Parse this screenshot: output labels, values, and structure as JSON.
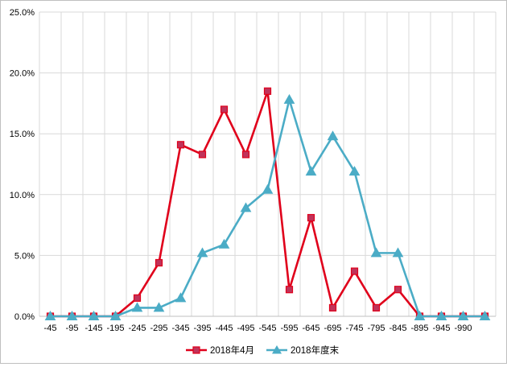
{
  "chart_data": {
    "type": "line",
    "categories": [
      "-45",
      "-95",
      "-145",
      "-195",
      "-245",
      "-295",
      "-345",
      "-395",
      "-445",
      "-495",
      "-545",
      "-595",
      "-645",
      "-695",
      "-745",
      "-795",
      "-845",
      "-895",
      "-945",
      "-990",
      ""
    ],
    "y_ticks": [
      "0.0%",
      "5.0%",
      "10.0%",
      "15.0%",
      "20.0%",
      "25.0%"
    ],
    "ylim": [
      0,
      25
    ],
    "grid": true,
    "legend_position": "bottom",
    "series": [
      {
        "name": "2018年4月",
        "color": "#e0001b",
        "marker": "square",
        "values": [
          0,
          0,
          0,
          0,
          1.5,
          4.4,
          14.1,
          13.3,
          17.0,
          13.3,
          18.5,
          2.2,
          8.1,
          0.7,
          3.7,
          0.7,
          2.2,
          0,
          0,
          0,
          0
        ]
      },
      {
        "name": "2018年度末",
        "color": "#4bacc6",
        "marker": "triangle",
        "values": [
          0,
          0,
          0,
          0,
          0.7,
          0.7,
          1.5,
          5.2,
          5.9,
          8.9,
          10.4,
          17.8,
          11.9,
          14.8,
          11.9,
          5.2,
          5.2,
          0,
          0,
          0,
          0
        ]
      }
    ]
  }
}
